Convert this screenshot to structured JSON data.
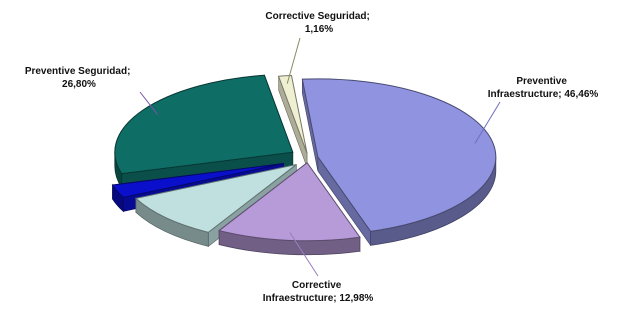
{
  "chart_data": {
    "type": "pie",
    "title": "",
    "slices": [
      {
        "label": "Preventive Infraestructure",
        "label_lines": [
          "Preventive",
          "Infraestructure; 46,46%"
        ],
        "value": 46.46,
        "color": "#8f93e0"
      },
      {
        "label": "Corrective Infraestructure",
        "label_lines": [
          "Corrective",
          "Infraestructure; 12,98%"
        ],
        "value": 12.98,
        "color": "#b79ad8"
      },
      {
        "label": "",
        "label_lines": [],
        "value": 9.6,
        "color": "#bfe0df"
      },
      {
        "label": "",
        "label_lines": [],
        "value": 2.7,
        "color": "#0a0fcc"
      },
      {
        "label": "Preventive Seguridad",
        "label_lines": [
          "Preventive Seguridad;",
          "26,80%"
        ],
        "value": 26.8,
        "color": "#0e6e66"
      },
      {
        "label": "Corrective Seguridad",
        "label_lines": [
          "Corrective Seguridad;",
          "1,16%"
        ],
        "value": 1.16,
        "color": "#efefd2"
      }
    ],
    "legend": "none",
    "style": "3d-exploded"
  }
}
